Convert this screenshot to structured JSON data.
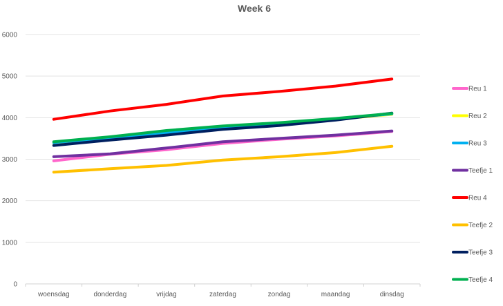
{
  "chart_data": {
    "type": "line",
    "title": "Week 6",
    "xlabel": "",
    "ylabel": "",
    "categories": [
      "woensdag",
      "donderdag",
      "vrijdag",
      "zaterdag",
      "zondag",
      "maandag",
      "dinsdag"
    ],
    "ylim": [
      0,
      6000
    ],
    "yticks": [
      0,
      1000,
      2000,
      3000,
      4000,
      5000,
      6000
    ],
    "grid": true,
    "legend_position": "right",
    "series": [
      {
        "name": "Reu 1",
        "color": "#FF66CC",
        "values": [
          2960,
          3120,
          3230,
          3380,
          3480,
          3560,
          3670
        ]
      },
      {
        "name": "Reu 2",
        "color": "#FFFF00",
        "values": [
          3390,
          3510,
          3640,
          3750,
          3830,
          3960,
          4080
        ]
      },
      {
        "name": "Reu 3",
        "color": "#00B0F0",
        "values": [
          3400,
          3520,
          3640,
          3760,
          3840,
          3970,
          4090
        ]
      },
      {
        "name": "Teefje 1",
        "color": "#7030A0",
        "values": [
          3060,
          3130,
          3270,
          3420,
          3500,
          3580,
          3680
        ]
      },
      {
        "name": "Reu 4",
        "color": "#FF0000",
        "values": [
          3960,
          4160,
          4320,
          4520,
          4630,
          4760,
          4930
        ]
      },
      {
        "name": "Teefje 2",
        "color": "#FFC000",
        "values": [
          2690,
          2770,
          2850,
          2980,
          3060,
          3160,
          3310
        ]
      },
      {
        "name": "Teefje 3",
        "color": "#002060",
        "values": [
          3330,
          3460,
          3580,
          3720,
          3810,
          3940,
          4110
        ]
      },
      {
        "name": "Teefje 4",
        "color": "#00B050",
        "values": [
          3420,
          3540,
          3690,
          3800,
          3880,
          3980,
          4100
        ]
      }
    ]
  }
}
